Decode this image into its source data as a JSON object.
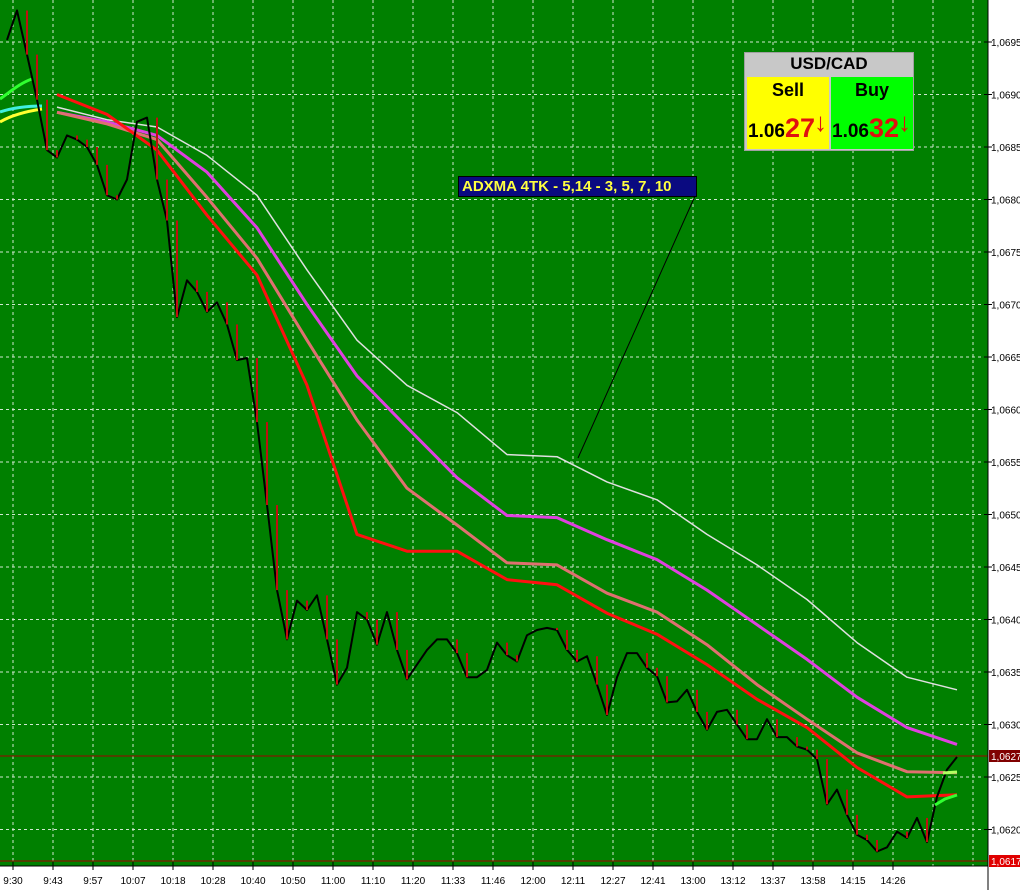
{
  "instrument": {
    "symbol": "USD/CAD",
    "sell_label": "Sell",
    "sell_price_prefix": "1.06",
    "sell_price_pips": "27",
    "buy_label": "Buy",
    "buy_price_prefix": "1.06",
    "buy_price_pips": "32",
    "sell_direction": "down-arrow-icon",
    "buy_direction": "down-arrow-icon"
  },
  "annotation": "ADXMA 4TK - 5,14 - 3, 5, 7, 10",
  "colors": {
    "background": "#008000",
    "grid": "#d0e8d0",
    "price": "#000000",
    "ma_white": "#e0e0e0",
    "ma_magenta": "#e040e0",
    "ma_salmon": "#e07070",
    "ma_red": "#ff1010",
    "current_marker": "#800000",
    "low_marker": "#e00000"
  },
  "chart_data": {
    "type": "line",
    "title": "",
    "xlabel": "",
    "ylabel": "",
    "ylim": [
      1.06165,
      1.07
    ],
    "grid": true,
    "y_ticks": [
      "1,0695",
      "1,0690",
      "1,0685",
      "1,0680",
      "1,0675",
      "1,0670",
      "1,0665",
      "1,0660",
      "1,0655",
      "1,0650",
      "1,0645",
      "1,0640",
      "1,0635",
      "1,0630",
      "1,0625",
      "1,0620"
    ],
    "y_tick_values": [
      1.0695,
      1.069,
      1.0685,
      1.068,
      1.0675,
      1.067,
      1.0665,
      1.066,
      1.0655,
      1.065,
      1.0645,
      1.064,
      1.0635,
      1.063,
      1.0625,
      1.062
    ],
    "x_ticks": [
      "9:30",
      "9:43",
      "9:57",
      "10:07",
      "10:18",
      "10:28",
      "10:40",
      "10:50",
      "11:00",
      "11:10",
      "11:20",
      "11:33",
      "11:46",
      "12:00",
      "12:11",
      "12:27",
      "12:41",
      "13:00",
      "13:12",
      "13:37",
      "13:58",
      "14:15",
      "14:26"
    ],
    "markers": [
      {
        "label": "1,0627",
        "value": 1.0627
      },
      {
        "label": "1,0617",
        "value": 1.0617
      }
    ],
    "price": [
      1.06952,
      1.0698,
      1.06938,
      1.06895,
      1.06847,
      1.0684,
      1.06861,
      1.06857,
      1.0685,
      1.06833,
      1.06804,
      1.068,
      1.06819,
      1.06874,
      1.06878,
      1.06819,
      1.0678,
      1.06688,
      1.06723,
      1.06712,
      1.06693,
      1.06702,
      1.06681,
      1.06647,
      1.06649,
      1.06588,
      1.06509,
      1.06428,
      1.06381,
      1.06418,
      1.06409,
      1.06423,
      1.06381,
      1.06338,
      1.06354,
      1.06407,
      1.064,
      1.06376,
      1.06407,
      1.06371,
      1.06343,
      1.06357,
      1.06371,
      1.06381,
      1.06381,
      1.06368,
      1.06345,
      1.06345,
      1.06352,
      1.06378,
      1.06366,
      1.0636,
      1.06385,
      1.0639,
      1.06392,
      1.0639,
      1.06371,
      1.0636,
      1.06365,
      1.06338,
      1.06309,
      1.06345,
      1.06368,
      1.06368,
      1.06354,
      1.06346,
      1.06321,
      1.06322,
      1.06333,
      1.06312,
      1.06295,
      1.06312,
      1.06314,
      1.063,
      1.06286,
      1.06286,
      1.06305,
      1.06288,
      1.06288,
      1.06279,
      1.06276,
      1.06267,
      1.06224,
      1.06238,
      1.06214,
      1.06195,
      1.0619,
      1.06179,
      1.06183,
      1.06198,
      1.06192,
      1.06211,
      1.06188,
      1.06231,
      1.06257,
      1.06269
    ],
    "series": [
      {
        "color": "#e0e0e0",
        "values": [
          null,
          1.06888,
          1.06876,
          1.06869,
          1.06842,
          1.06804,
          1.06733,
          1.06666,
          1.06623,
          1.06597,
          1.06557,
          1.06555,
          1.06531,
          1.06514,
          1.06481,
          1.06452,
          1.06419,
          1.06378,
          1.06345,
          1.06333
        ]
      },
      {
        "color": "#e040e0",
        "values": [
          null,
          1.06883,
          1.06874,
          1.06861,
          1.06826,
          1.06773,
          1.067,
          1.06632,
          1.06583,
          1.06535,
          1.06499,
          1.06497,
          1.06476,
          1.06457,
          1.06428,
          1.06395,
          1.06362,
          1.06326,
          1.06297,
          1.06281
        ]
      },
      {
        "color": "#e07070",
        "values": [
          null,
          1.06883,
          1.06872,
          1.06857,
          1.06802,
          1.06744,
          1.06666,
          1.0659,
          1.06525,
          1.0649,
          1.06454,
          1.06452,
          1.06425,
          1.06407,
          1.06376,
          1.06338,
          1.06305,
          1.06273,
          1.06255,
          1.06254
        ]
      },
      {
        "color": "#ff1010",
        "values": [
          null,
          1.069,
          1.06881,
          1.06847,
          1.06785,
          1.06728,
          1.06623,
          1.06481,
          1.06465,
          1.06465,
          1.06438,
          1.06433,
          1.06406,
          1.06386,
          1.06357,
          1.06324,
          1.06297,
          1.06259,
          1.06231,
          1.06233
        ]
      }
    ]
  }
}
